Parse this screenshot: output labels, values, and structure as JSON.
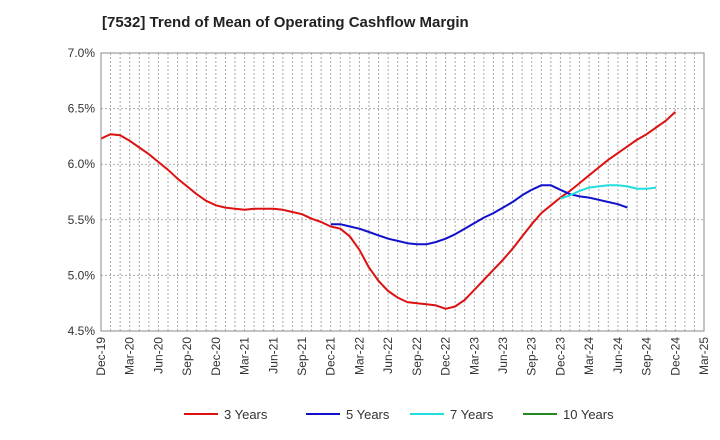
{
  "chart_data": {
    "type": "line",
    "title": "[7532]  Trend of Mean of Operating Cashflow Margin",
    "xlabel": "",
    "ylabel": "",
    "ylim": [
      4.5,
      7.0
    ],
    "y_ticks": [
      "4.5%",
      "5.0%",
      "5.5%",
      "6.0%",
      "6.5%",
      "7.0%"
    ],
    "y_tick_values": [
      4.5,
      5.0,
      5.5,
      6.0,
      6.5,
      7.0
    ],
    "x_tick_labels": [
      "Dec-19",
      "Mar-20",
      "Jun-20",
      "Sep-20",
      "Dec-20",
      "Mar-21",
      "Jun-21",
      "Sep-21",
      "Dec-21",
      "Mar-22",
      "Jun-22",
      "Sep-22",
      "Dec-22",
      "Mar-23",
      "Jun-23",
      "Sep-23",
      "Dec-23",
      "Mar-24",
      "Jun-24",
      "Sep-24",
      "Dec-24",
      "Mar-25"
    ],
    "grid": true,
    "legend_position": "bottom",
    "series": [
      {
        "name": "3 Years",
        "color": "#dd1111",
        "values": [
          6.23,
          6.27,
          6.26,
          6.21,
          6.15,
          6.09,
          6.02,
          5.95,
          5.87,
          5.8,
          5.73,
          5.67,
          5.63,
          5.61,
          5.6,
          5.59,
          5.6,
          5.6,
          5.6,
          5.59,
          5.57,
          5.55,
          5.51,
          5.48,
          5.44,
          5.42,
          5.35,
          5.23,
          5.07,
          4.95,
          4.86,
          4.8,
          4.76,
          4.75,
          4.74,
          4.73,
          4.7,
          4.72,
          4.78,
          4.87,
          4.96,
          5.05,
          5.14,
          5.24,
          5.35,
          5.46,
          5.56,
          5.63,
          5.7,
          5.76,
          5.83,
          5.9,
          5.97,
          6.04,
          6.1,
          6.16,
          6.22,
          6.27,
          6.33,
          6.39,
          6.47
        ]
      },
      {
        "name": "5 Years",
        "color": "#1111cc",
        "start_index": 24,
        "values": [
          5.46,
          5.46,
          5.44,
          5.42,
          5.39,
          5.36,
          5.33,
          5.31,
          5.29,
          5.28,
          5.28,
          5.3,
          5.33,
          5.37,
          5.42,
          5.47,
          5.52,
          5.56,
          5.61,
          5.66,
          5.72,
          5.77,
          5.81,
          5.81,
          5.77,
          5.73,
          5.71,
          5.7,
          5.68,
          5.66,
          5.64,
          5.61
        ]
      },
      {
        "name": "7 Years",
        "color": "#22dddd",
        "start_index": 48,
        "values": [
          5.69,
          5.72,
          5.76,
          5.79,
          5.8,
          5.81,
          5.81,
          5.8,
          5.78,
          5.78,
          5.79
        ]
      },
      {
        "name": "10 Years",
        "color": "#228822",
        "values": []
      }
    ]
  }
}
